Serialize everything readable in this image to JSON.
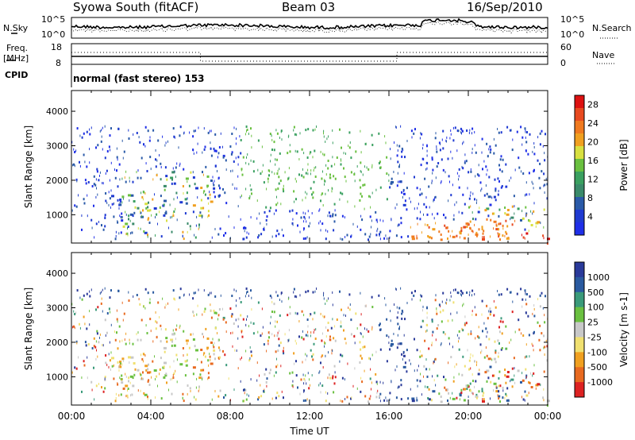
{
  "header": {
    "title": "Syowa South (fitACF)",
    "beam": "Beam 03",
    "date": "16/Sep/2010"
  },
  "noise_panel": {
    "left_label": "N.Sky",
    "right_label": "N.Search",
    "left_ticks": [
      "10^5",
      "10^0"
    ],
    "right_ticks": [
      "10^5",
      "10^0"
    ]
  },
  "freq_panel": {
    "left_label_line1": "Freq.",
    "left_label_line2": "[MHz]",
    "right_label": "Nave",
    "left_ticks": [
      "18",
      "8"
    ],
    "right_ticks": [
      "60",
      "0"
    ]
  },
  "cpid": {
    "label": "CPID",
    "text": "normal (fast stereo) 153"
  },
  "colors": {
    "power": [
      "#1f2fe8",
      "#1f3ad1",
      "#2a5aa8",
      "#3a8a6a",
      "#3aa060",
      "#6ac040",
      "#d8e040",
      "#f0a020",
      "#f07a20",
      "#e84a20",
      "#dd1111"
    ],
    "velocity": [
      "#2a3a9a",
      "#2a5aa0",
      "#3a9a7a",
      "#6ac040",
      "#c8c8c8",
      "#f0e070",
      "#f0a020",
      "#e86a20",
      "#dd2222"
    ]
  },
  "chart_data": [
    {
      "type": "heatmap",
      "name": "power",
      "ylabel": "Slant Range [km]",
      "xlabel": "",
      "x_tick_labels": [
        "00:00",
        "04:00",
        "08:00",
        "12:00",
        "16:00",
        "20:00",
        "00:00"
      ],
      "y_ticks": [
        1000,
        2000,
        3000,
        4000
      ],
      "xlim_hours": [
        0,
        24
      ],
      "ylim_km": [
        180,
        4600
      ],
      "colorbar": {
        "label": "Power [dB]",
        "ticks": [
          "28",
          "24",
          "20",
          "16",
          "12",
          "8",
          "4"
        ],
        "range": [
          0,
          30
        ]
      }
    },
    {
      "type": "heatmap",
      "name": "velocity",
      "ylabel": "Slant Range [km]",
      "xlabel": "Time UT",
      "x_tick_labels": [
        "00:00",
        "04:00",
        "08:00",
        "12:00",
        "16:00",
        "20:00",
        "00:00"
      ],
      "y_ticks": [
        1000,
        2000,
        3000,
        4000
      ],
      "xlim_hours": [
        0,
        24
      ],
      "ylim_km": [
        180,
        4600
      ],
      "colorbar": {
        "label": "Velocity [m s-1]",
        "ticks": [
          "1000",
          "500",
          "100",
          "25",
          "-25",
          "-100",
          "-500",
          "-1000"
        ],
        "range": [
          -1000,
          1000
        ]
      }
    }
  ]
}
